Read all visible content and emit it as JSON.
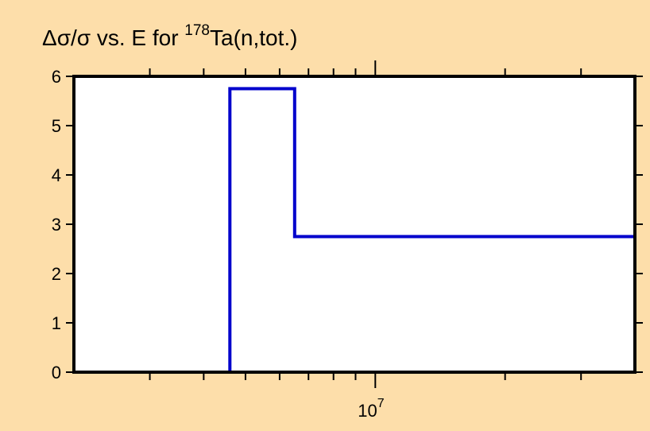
{
  "chart_data": {
    "type": "line",
    "title": {
      "prefix": "Δσ/σ vs. E for ",
      "superscript": "178",
      "suffix": "Ta(n,tot.)"
    },
    "xlabel": "",
    "ylabel": "",
    "x_scale": "log",
    "xlim": [
      2000000,
      40000000
    ],
    "ylim": [
      0,
      6
    ],
    "y_ticks": [
      0,
      1,
      2,
      3,
      4,
      5,
      6
    ],
    "x_major_tick": {
      "value": 10000000,
      "base": "10",
      "exponent": "7"
    },
    "x_minor_ticks": [
      3000000,
      4000000,
      5000000,
      6000000,
      7000000,
      8000000,
      9000000,
      20000000,
      30000000
    ],
    "grid": false,
    "series": [
      {
        "style": "step",
        "color": "#0000CC",
        "points": [
          [
            4600000,
            0
          ],
          [
            4600000,
            5.75
          ],
          [
            6500000,
            5.75
          ],
          [
            6500000,
            2.75
          ],
          [
            40000000,
            2.75
          ],
          [
            40000000,
            0
          ]
        ]
      }
    ]
  }
}
